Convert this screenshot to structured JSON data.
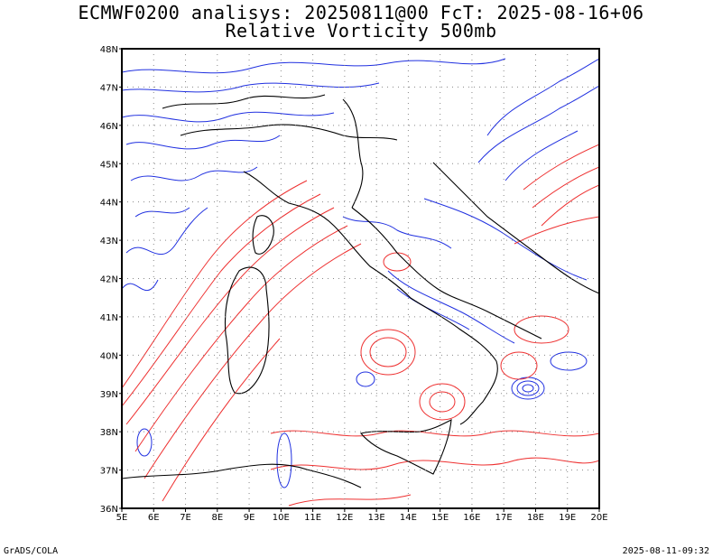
{
  "header": {
    "line1": "ECMWF0200 analisys: 20250811@00 FcT: 2025-08-16+06",
    "line2": "Relative Vorticity 500mb"
  },
  "footer": {
    "left": "GrADS/COLA",
    "right": "2025-08-11-09:32"
  },
  "map": {
    "lon_labels": [
      "5E",
      "6E",
      "7E",
      "8E",
      "9E",
      "10E",
      "11E",
      "12E",
      "13E",
      "14E",
      "15E",
      "16E",
      "17E",
      "18E",
      "19E",
      "20E"
    ],
    "lat_labels": [
      "48N",
      "47N",
      "46N",
      "45N",
      "44N",
      "43N",
      "42N",
      "41N",
      "40N",
      "39N",
      "38N",
      "37N",
      "36N"
    ],
    "colors": {
      "positive_vorticity": "#ee3030",
      "negative_vorticity": "#2030e0",
      "coastline": "#000000",
      "grid": "#888888"
    }
  }
}
